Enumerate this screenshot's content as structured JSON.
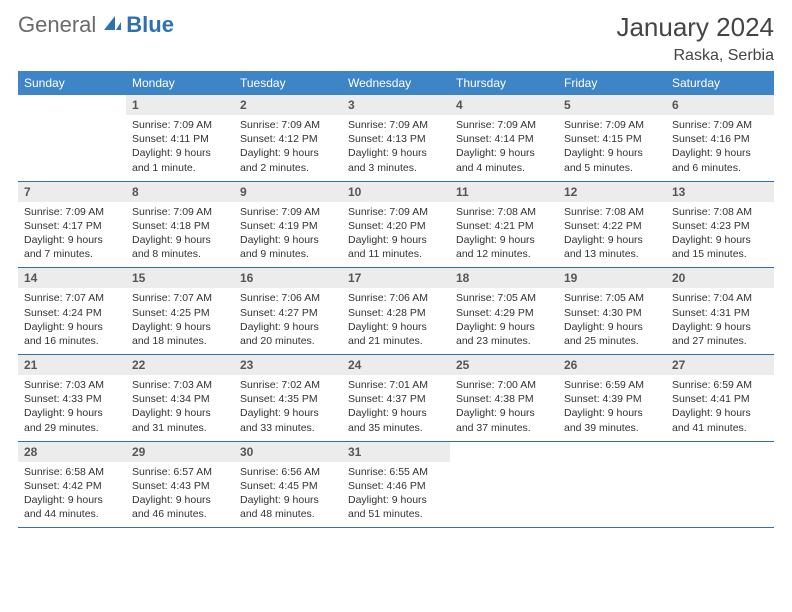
{
  "brand": {
    "general": "General",
    "blue": "Blue"
  },
  "title": "January 2024",
  "location": "Raska, Serbia",
  "colors": {
    "header_bg": "#3d85c6",
    "rule": "#2f6fb3",
    "daynum_bg": "#ececec",
    "text": "#333333",
    "logo_gray": "#6a6a6a",
    "logo_blue": "#2f6fb3"
  },
  "typography": {
    "title_fontsize": 26,
    "location_fontsize": 16,
    "weekday_fontsize": 12,
    "daynum_fontsize": 12,
    "body_fontsize": 10.5
  },
  "weekdays": [
    "Sunday",
    "Monday",
    "Tuesday",
    "Wednesday",
    "Thursday",
    "Friday",
    "Saturday"
  ],
  "weeks": [
    [
      {
        "empty": true
      },
      {
        "n": "1",
        "sunrise": "7:09 AM",
        "sunset": "4:11 PM",
        "day_h": "9",
        "day_m": "1",
        "plural": ""
      },
      {
        "n": "2",
        "sunrise": "7:09 AM",
        "sunset": "4:12 PM",
        "day_h": "9",
        "day_m": "2",
        "plural": "s"
      },
      {
        "n": "3",
        "sunrise": "7:09 AM",
        "sunset": "4:13 PM",
        "day_h": "9",
        "day_m": "3",
        "plural": "s"
      },
      {
        "n": "4",
        "sunrise": "7:09 AM",
        "sunset": "4:14 PM",
        "day_h": "9",
        "day_m": "4",
        "plural": "s"
      },
      {
        "n": "5",
        "sunrise": "7:09 AM",
        "sunset": "4:15 PM",
        "day_h": "9",
        "day_m": "5",
        "plural": "s"
      },
      {
        "n": "6",
        "sunrise": "7:09 AM",
        "sunset": "4:16 PM",
        "day_h": "9",
        "day_m": "6",
        "plural": "s"
      }
    ],
    [
      {
        "n": "7",
        "sunrise": "7:09 AM",
        "sunset": "4:17 PM",
        "day_h": "9",
        "day_m": "7",
        "plural": "s"
      },
      {
        "n": "8",
        "sunrise": "7:09 AM",
        "sunset": "4:18 PM",
        "day_h": "9",
        "day_m": "8",
        "plural": "s"
      },
      {
        "n": "9",
        "sunrise": "7:09 AM",
        "sunset": "4:19 PM",
        "day_h": "9",
        "day_m": "9",
        "plural": "s"
      },
      {
        "n": "10",
        "sunrise": "7:09 AM",
        "sunset": "4:20 PM",
        "day_h": "9",
        "day_m": "11",
        "plural": "s"
      },
      {
        "n": "11",
        "sunrise": "7:08 AM",
        "sunset": "4:21 PM",
        "day_h": "9",
        "day_m": "12",
        "plural": "s"
      },
      {
        "n": "12",
        "sunrise": "7:08 AM",
        "sunset": "4:22 PM",
        "day_h": "9",
        "day_m": "13",
        "plural": "s"
      },
      {
        "n": "13",
        "sunrise": "7:08 AM",
        "sunset": "4:23 PM",
        "day_h": "9",
        "day_m": "15",
        "plural": "s"
      }
    ],
    [
      {
        "n": "14",
        "sunrise": "7:07 AM",
        "sunset": "4:24 PM",
        "day_h": "9",
        "day_m": "16",
        "plural": "s"
      },
      {
        "n": "15",
        "sunrise": "7:07 AM",
        "sunset": "4:25 PM",
        "day_h": "9",
        "day_m": "18",
        "plural": "s"
      },
      {
        "n": "16",
        "sunrise": "7:06 AM",
        "sunset": "4:27 PM",
        "day_h": "9",
        "day_m": "20",
        "plural": "s"
      },
      {
        "n": "17",
        "sunrise": "7:06 AM",
        "sunset": "4:28 PM",
        "day_h": "9",
        "day_m": "21",
        "plural": "s"
      },
      {
        "n": "18",
        "sunrise": "7:05 AM",
        "sunset": "4:29 PM",
        "day_h": "9",
        "day_m": "23",
        "plural": "s"
      },
      {
        "n": "19",
        "sunrise": "7:05 AM",
        "sunset": "4:30 PM",
        "day_h": "9",
        "day_m": "25",
        "plural": "s"
      },
      {
        "n": "20",
        "sunrise": "7:04 AM",
        "sunset": "4:31 PM",
        "day_h": "9",
        "day_m": "27",
        "plural": "s"
      }
    ],
    [
      {
        "n": "21",
        "sunrise": "7:03 AM",
        "sunset": "4:33 PM",
        "day_h": "9",
        "day_m": "29",
        "plural": "s"
      },
      {
        "n": "22",
        "sunrise": "7:03 AM",
        "sunset": "4:34 PM",
        "day_h": "9",
        "day_m": "31",
        "plural": "s"
      },
      {
        "n": "23",
        "sunrise": "7:02 AM",
        "sunset": "4:35 PM",
        "day_h": "9",
        "day_m": "33",
        "plural": "s"
      },
      {
        "n": "24",
        "sunrise": "7:01 AM",
        "sunset": "4:37 PM",
        "day_h": "9",
        "day_m": "35",
        "plural": "s"
      },
      {
        "n": "25",
        "sunrise": "7:00 AM",
        "sunset": "4:38 PM",
        "day_h": "9",
        "day_m": "37",
        "plural": "s"
      },
      {
        "n": "26",
        "sunrise": "6:59 AM",
        "sunset": "4:39 PM",
        "day_h": "9",
        "day_m": "39",
        "plural": "s"
      },
      {
        "n": "27",
        "sunrise": "6:59 AM",
        "sunset": "4:41 PM",
        "day_h": "9",
        "day_m": "41",
        "plural": "s"
      }
    ],
    [
      {
        "n": "28",
        "sunrise": "6:58 AM",
        "sunset": "4:42 PM",
        "day_h": "9",
        "day_m": "44",
        "plural": "s"
      },
      {
        "n": "29",
        "sunrise": "6:57 AM",
        "sunset": "4:43 PM",
        "day_h": "9",
        "day_m": "46",
        "plural": "s"
      },
      {
        "n": "30",
        "sunrise": "6:56 AM",
        "sunset": "4:45 PM",
        "day_h": "9",
        "day_m": "48",
        "plural": "s"
      },
      {
        "n": "31",
        "sunrise": "6:55 AM",
        "sunset": "4:46 PM",
        "day_h": "9",
        "day_m": "51",
        "plural": "s"
      },
      {
        "empty": true
      },
      {
        "empty": true
      },
      {
        "empty": true
      }
    ]
  ],
  "labels": {
    "sunrise": "Sunrise:",
    "sunset": "Sunset:",
    "daylight": "Daylight:",
    "hours": "hours",
    "and": "and",
    "minute": "minute"
  }
}
